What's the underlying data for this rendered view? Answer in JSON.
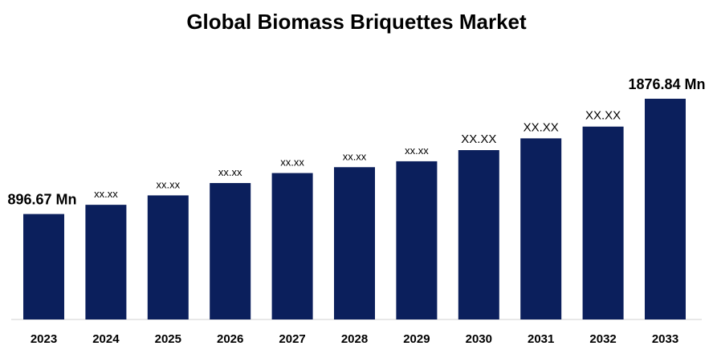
{
  "chart_data": {
    "type": "bar",
    "title": "Global Biomass Briquettes Market",
    "xlabel": "",
    "ylabel": "",
    "categories": [
      "2023",
      "2024",
      "2025",
      "2026",
      "2027",
      "2028",
      "2029",
      "2030",
      "2031",
      "2032",
      "2033"
    ],
    "values": [
      896.67,
      975,
      1055,
      1160,
      1245,
      1295,
      1345,
      1440,
      1540,
      1640,
      1876.84
    ],
    "data_labels": [
      "896.67 Mn",
      "xx.xx",
      "xx.xx",
      "xx.xx",
      "xx.xx",
      "xx.xx",
      "xx.xx",
      "XX.XX",
      "XX.XX",
      "XX.XX",
      "1876.84 Mn"
    ],
    "ylim": [
      0,
      2000
    ],
    "grid": false,
    "legend": "none",
    "bar_color": "#0b1f5c"
  }
}
